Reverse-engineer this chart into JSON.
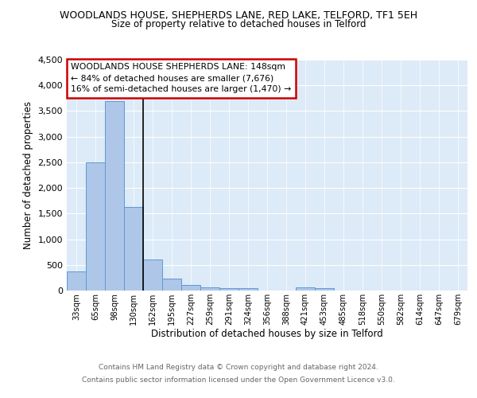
{
  "title1": "WOODLANDS HOUSE, SHEPHERDS LANE, RED LAKE, TELFORD, TF1 5EH",
  "title2": "Size of property relative to detached houses in Telford",
  "xlabel": "Distribution of detached houses by size in Telford",
  "ylabel": "Number of detached properties",
  "categories": [
    "33sqm",
    "65sqm",
    "98sqm",
    "130sqm",
    "162sqm",
    "195sqm",
    "227sqm",
    "259sqm",
    "291sqm",
    "324sqm",
    "356sqm",
    "388sqm",
    "421sqm",
    "453sqm",
    "485sqm",
    "518sqm",
    "550sqm",
    "582sqm",
    "614sqm",
    "647sqm",
    "679sqm"
  ],
  "values": [
    370,
    2500,
    3700,
    1630,
    600,
    240,
    110,
    60,
    40,
    40,
    0,
    0,
    60,
    40,
    0,
    0,
    0,
    0,
    0,
    0,
    0
  ],
  "bar_color": "#aec6e8",
  "bar_edge_color": "#5b9bd5",
  "property_line_index": 3.5,
  "annotation_text_line1": "WOODLANDS HOUSE SHEPHERDS LANE: 148sqm",
  "annotation_text_line2": "← 84% of detached houses are smaller (7,676)",
  "annotation_text_line3": "16% of semi-detached houses are larger (1,470) →",
  "annotation_box_color": "#ffffff",
  "annotation_box_edge": "#cc0000",
  "vline_color": "#000000",
  "background_color": "#ddeaf7",
  "footer_line1": "Contains HM Land Registry data © Crown copyright and database right 2024.",
  "footer_line2": "Contains public sector information licensed under the Open Government Licence v3.0.",
  "ylim": [
    0,
    4500
  ],
  "yticks": [
    0,
    500,
    1000,
    1500,
    2000,
    2500,
    3000,
    3500,
    4000,
    4500
  ]
}
